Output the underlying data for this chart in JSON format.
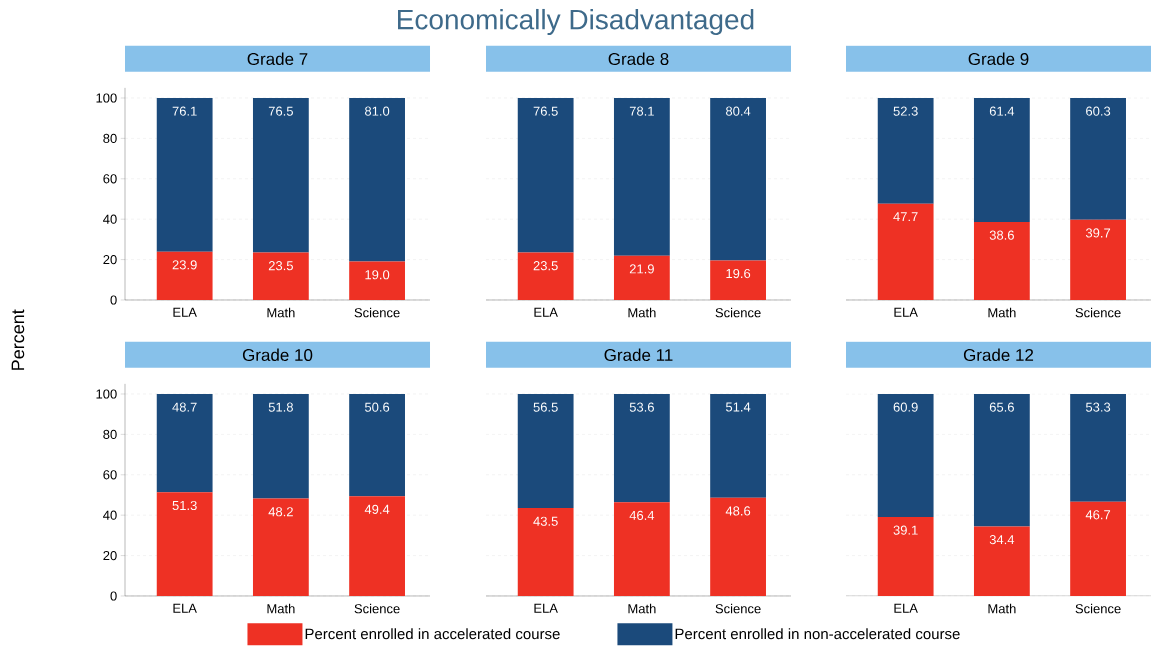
{
  "chart_data": [
    {
      "type": "bar",
      "title": "Grade 7",
      "ylabel": "Percent",
      "annotations": [
        "Economically Disadvantaged"
      ],
      "categories": [
        "ELA",
        "Math",
        "Science"
      ],
      "stacked": true,
      "series": [
        {
          "color": "#ee3124",
          "values": [
            23.9,
            23.5,
            19.0
          ],
          "value_labels": [
            "23.9",
            "23.5",
            "19.0"
          ]
        },
        {
          "color": "#1b4a7b",
          "values": [
            76.1,
            76.5,
            81.0
          ],
          "value_labels": [
            "76.1",
            "76.5",
            "81.0"
          ]
        }
      ],
      "ylim": [
        0,
        105
      ],
      "yticks": [
        0,
        20,
        40,
        60,
        80,
        100
      ],
      "grid": "y"
    },
    {
      "type": "bar",
      "title": "Grade 8",
      "categories": [
        "ELA",
        "Math",
        "Science"
      ],
      "stacked": true,
      "series": [
        {
          "color": "#ee3124",
          "values": [
            23.5,
            21.9,
            19.6
          ]
        },
        {
          "color": "#1b4a7b",
          "values": [
            76.5,
            78.1,
            80.4
          ]
        }
      ],
      "ylim": [
        0,
        100
      ],
      "yticks": [
        0,
        20,
        40,
        60,
        80,
        100
      ],
      "grid": "y",
      "data_labels": true,
      "tick_labels": "x"
    },
    {
      "type": "bar",
      "title": "Grade 9",
      "categories": [
        "ELA",
        "Math",
        "Science"
      ],
      "stacked": true,
      "series": [
        {
          "color": "#ee3124",
          "values": [
            47.7,
            38.6,
            39.7
          ]
        },
        {
          "color": "#1b4a7b",
          "values": [
            52.3,
            61.4,
            60.3
          ]
        }
      ],
      "ylim": [
        0,
        100
      ],
      "yticks": [
        0,
        20,
        40,
        60,
        80,
        100
      ],
      "grid": "y",
      "data_labels": true,
      "tick_labels": "x"
    },
    {
      "type": "bar",
      "title": "Grade 10",
      "categories": [
        "ELA",
        "Math",
        "Science"
      ],
      "stacked": true,
      "series": [
        {
          "color": "#ee3124",
          "values": [
            51.3,
            48.2,
            49.4
          ]
        },
        {
          "color": "#1b4a7b",
          "values": [
            48.7,
            51.8,
            50.6
          ]
        }
      ],
      "ylim": [
        0,
        105
      ],
      "yticks": [
        0,
        20,
        40,
        60,
        80,
        100
      ],
      "grid": "y",
      "data_labels": true
    },
    {
      "type": "bar",
      "title": "Grade 11",
      "categories": [
        "ELA",
        "Math",
        "Science"
      ],
      "stacked": true,
      "series": [
        {
          "name": "Percent enrolled in accelerated course",
          "color": "#ee3124",
          "values": [
            43.5,
            46.4,
            48.6
          ]
        },
        {
          "name": "Percent enrolled in non-accelerated course",
          "color": "#1b4a7b",
          "values": [
            56.5,
            53.6,
            51.4
          ]
        }
      ],
      "ylim": [
        0,
        100
      ],
      "yticks": [
        0,
        20,
        40,
        60,
        80,
        100
      ],
      "grid": "y",
      "data_labels": true,
      "tick_labels": "x",
      "legend": "bottom"
    },
    {
      "type": "bar",
      "title": "Grade 12",
      "categories": [
        "ELA",
        "Math",
        "Science"
      ],
      "stacked": true,
      "series": [
        {
          "color": "#ee3124",
          "values": [
            39.1,
            34.4,
            46.7
          ]
        },
        {
          "color": "#1b4a7b",
          "values": [
            60.9,
            65.6,
            53.3
          ]
        }
      ],
      "ylim": [
        0,
        100
      ],
      "yticks": [
        0,
        20,
        40,
        60,
        80,
        100
      ],
      "grid": "y",
      "data_labels": true,
      "tick_labels": "x"
    }
  ]
}
